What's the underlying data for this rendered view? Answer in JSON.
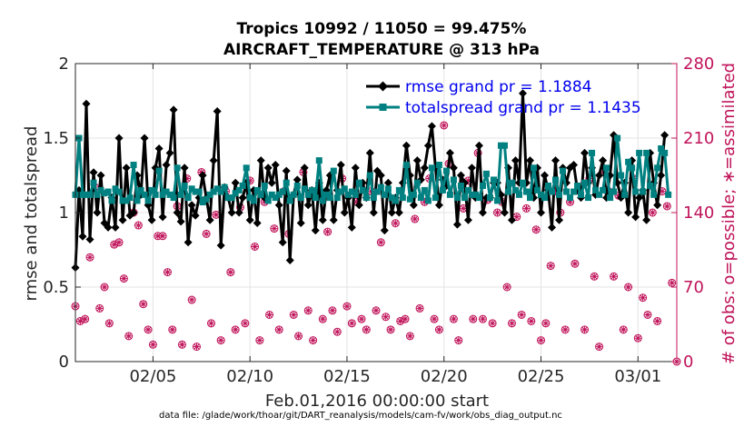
{
  "chart_data": {
    "type": "line",
    "title": "Tropics 10992 / 11050 = 99.475%",
    "subtitle": "AIRCRAFT_TEMPERATURE @ 313 hPa",
    "xlabel": "Feb.01,2016 00:00:00 start",
    "ylabel": "rmse and totalspread",
    "ylabel_right": "# of obs: o=possible; ∗=assimilated",
    "footnote": "data file: /glade/work/thoar/git/DART_reanalysis/models/cam-fv/work/obs_diag_output.nc",
    "xlim": [
      1,
      32
    ],
    "ylim": [
      0,
      2
    ],
    "ylim_right": [
      0,
      280
    ],
    "x_ticks": [
      5,
      10,
      15,
      20,
      25,
      30
    ],
    "x_tick_labels": [
      "02/05",
      "02/10",
      "02/15",
      "02/20",
      "02/25",
      "03/01"
    ],
    "y_ticks": [
      0,
      0.5,
      1,
      1.5,
      2
    ],
    "y_tick_labels": [
      "0",
      "0.5",
      "1",
      "1.5",
      "2"
    ],
    "y_ticks_right": [
      0,
      70,
      140,
      210,
      280
    ],
    "y_tick_labels_right": [
      "0",
      "70",
      "140",
      "210",
      "280"
    ],
    "colors": {
      "rmse": "#000000",
      "totalspread": "#008080",
      "obs": "#c0145a",
      "legend_text": "#0000ee"
    },
    "series": [
      {
        "name": "rmse grand pr = 1.1884",
        "values": [
          0.63,
          1.15,
          0.84,
          1.73,
          0.82,
          1.27,
          1.0,
          1.25,
          0.93,
          0.9,
          1.1,
          0.9,
          1.5,
          0.95,
          1.3,
          0.98,
          1.0,
          1.25,
          1.12,
          1.5,
          1.05,
          0.95,
          1.3,
          1.43,
          0.97,
          1.32,
          1.4,
          1.69,
          1.0,
          0.94,
          1.3,
          0.8,
          1.05,
          0.98,
          1.1,
          1.25,
          1.1,
          0.95,
          1.35,
          1.68,
          0.78,
          1.17,
          1.1,
          1.0,
          1.2,
          1.0,
          1.1,
          1.2,
          0.95,
          1.15,
          0.93,
          1.35,
          1.1,
          1.3,
          1.2,
          1.32,
          1.05,
          0.8,
          1.28,
          0.68,
          1.12,
          1.22,
          0.93,
          1.3,
          1.05,
          1.15,
          0.88,
          1.2,
          0.95,
          1.15,
          1.25,
          0.95,
          1.15,
          1.32,
          1.0,
          1.1,
          0.9,
          1.3,
          1.05,
          1.2,
          1.1,
          1.4,
          1.0,
          1.28,
          1.25,
          0.88,
          1.2,
          1.0,
          1.1,
          1.0,
          1.2,
          1.45,
          1.25,
          1.05,
          1.35,
          1.22,
          1.3,
          1.45,
          1.58,
          1.3,
          1.05,
          1.22,
          1.18,
          1.4,
          1.3,
          0.92,
          1.25,
          1.2,
          0.95,
          1.3,
          1.1,
          1.45,
          1.0,
          1.1,
          1.1,
          1.2,
          1.2,
          1.12,
          1.0,
          1.3,
          0.95,
          1.35,
          1.2,
          1.8,
          1.2,
          1.35,
          1.1,
          1.3,
          1.0,
          1.25,
          1.15,
          0.9,
          1.35,
          0.95,
          1.3,
          1.2,
          1.3,
          1.32,
          1.15,
          1.1,
          1.4,
          1.2,
          1.3,
          1.12,
          1.25,
          1.35,
          1.1,
          1.25,
          1.52,
          1.2,
          1.1,
          1.2,
          1.0,
          1.35,
          0.97,
          1.1,
          1.15,
          0.95,
          1.4,
          1.2,
          1.05,
          1.25,
          1.52
        ],
        "x_start": 1.0,
        "x_step": 0.1875
      },
      {
        "name": "totalspread grand pr = 1.1435",
        "values": [
          1.12,
          1.5,
          1.12,
          1.12,
          1.12,
          1.2,
          1.12,
          1.15,
          1.13,
          1.14,
          1.08,
          1.16,
          1.14,
          1.08,
          1.08,
          1.1,
          1.32,
          1.08,
          1.15,
          1.12,
          1.08,
          1.15,
          1.12,
          1.28,
          1.12,
          1.14,
          1.12,
          1.1,
          1.3,
          1.12,
          1.18,
          1.1,
          1.16,
          1.14,
          1.14,
          1.07,
          1.09,
          1.12,
          1.14,
          1.16,
          1.14,
          1.17,
          1.1,
          1.1,
          1.13,
          1.15,
          1.18,
          1.3,
          1.1,
          1.08,
          1.15,
          1.12,
          1.18,
          1.08,
          1.12,
          1.1,
          1.12,
          1.14,
          1.2,
          1.08,
          1.12,
          1.18,
          1.1,
          1.16,
          1.12,
          1.15,
          1.1,
          1.35,
          1.08,
          1.12,
          1.1,
          1.28,
          1.1,
          1.14,
          1.16,
          1.12,
          1.14,
          1.12,
          1.2,
          1.15,
          1.1,
          1.25,
          1.1,
          1.14,
          1.17,
          1.12,
          1.16,
          1.1,
          1.08,
          1.15,
          1.1,
          1.32,
          1.09,
          1.12,
          1.2,
          1.1,
          1.15,
          1.08,
          1.3,
          1.1,
          1.32,
          1.15,
          1.28,
          1.12,
          1.22,
          1.1,
          1.18,
          1.1,
          1.15,
          1.12,
          1.12,
          1.1,
          1.18,
          1.26,
          1.1,
          1.22,
          1.08,
          1.45,
          1.45,
          1.14,
          1.2,
          1.15,
          1.12,
          1.2,
          1.14,
          1.1,
          1.3,
          1.15,
          1.12,
          1.1,
          1.18,
          1.14,
          1.22,
          1.12,
          1.28,
          1.14,
          1.1,
          1.14,
          1.18,
          1.12,
          1.2,
          1.1,
          1.4,
          1.15,
          1.12,
          1.15,
          1.3,
          1.1,
          1.14,
          1.5,
          1.25,
          1.12,
          1.34,
          1.3,
          1.14,
          1.4,
          1.14,
          1.4,
          1.18,
          1.12,
          1.3,
          1.43,
          1.4,
          1.12
        ],
        "x_start": 1.0,
        "x_step": 0.1875
      }
    ],
    "obs_points": [
      {
        "x": 1.0,
        "y": 52
      },
      {
        "x": 1.25,
        "y": 38
      },
      {
        "x": 1.5,
        "y": 40
      },
      {
        "x": 1.75,
        "y": 98
      },
      {
        "x": 2.0,
        "y": 164
      },
      {
        "x": 2.25,
        "y": 50
      },
      {
        "x": 2.5,
        "y": 70
      },
      {
        "x": 2.75,
        "y": 36
      },
      {
        "x": 3.0,
        "y": 110
      },
      {
        "x": 3.25,
        "y": 112
      },
      {
        "x": 3.5,
        "y": 78
      },
      {
        "x": 3.75,
        "y": 24
      },
      {
        "x": 4.0,
        "y": 140
      },
      {
        "x": 4.25,
        "y": 128
      },
      {
        "x": 4.5,
        "y": 54
      },
      {
        "x": 4.75,
        "y": 30
      },
      {
        "x": 5.0,
        "y": 16
      },
      {
        "x": 5.25,
        "y": 118
      },
      {
        "x": 5.5,
        "y": 118
      },
      {
        "x": 5.75,
        "y": 84
      },
      {
        "x": 6.0,
        "y": 30
      },
      {
        "x": 6.25,
        "y": 146
      },
      {
        "x": 6.5,
        "y": 16
      },
      {
        "x": 6.75,
        "y": 172
      },
      {
        "x": 7.0,
        "y": 58
      },
      {
        "x": 7.25,
        "y": 14
      },
      {
        "x": 7.5,
        "y": 178
      },
      {
        "x": 7.75,
        "y": 120
      },
      {
        "x": 8.0,
        "y": 36
      },
      {
        "x": 8.25,
        "y": 138
      },
      {
        "x": 8.5,
        "y": 20
      },
      {
        "x": 8.75,
        "y": 160
      },
      {
        "x": 9.0,
        "y": 84
      },
      {
        "x": 9.25,
        "y": 30
      },
      {
        "x": 9.5,
        "y": 145
      },
      {
        "x": 9.75,
        "y": 36
      },
      {
        "x": 10.0,
        "y": 170
      },
      {
        "x": 10.25,
        "y": 108
      },
      {
        "x": 10.5,
        "y": 20
      },
      {
        "x": 10.75,
        "y": 150
      },
      {
        "x": 11.0,
        "y": 44
      },
      {
        "x": 11.25,
        "y": 125
      },
      {
        "x": 11.5,
        "y": 30
      },
      {
        "x": 11.75,
        "y": 160
      },
      {
        "x": 12.0,
        "y": 120
      },
      {
        "x": 12.25,
        "y": 44
      },
      {
        "x": 12.5,
        "y": 24
      },
      {
        "x": 12.75,
        "y": 178
      },
      {
        "x": 13.0,
        "y": 48
      },
      {
        "x": 13.25,
        "y": 20
      },
      {
        "x": 13.5,
        "y": 160
      },
      {
        "x": 13.75,
        "y": 40
      },
      {
        "x": 14.0,
        "y": 122
      },
      {
        "x": 14.25,
        "y": 48
      },
      {
        "x": 14.5,
        "y": 28
      },
      {
        "x": 14.75,
        "y": 172
      },
      {
        "x": 15.0,
        "y": 52
      },
      {
        "x": 15.25,
        "y": 36
      },
      {
        "x": 15.5,
        "y": 150
      },
      {
        "x": 15.75,
        "y": 40
      },
      {
        "x": 16.0,
        "y": 30
      },
      {
        "x": 16.25,
        "y": 160
      },
      {
        "x": 16.5,
        "y": 48
      },
      {
        "x": 16.75,
        "y": 112
      },
      {
        "x": 17.0,
        "y": 42
      },
      {
        "x": 17.25,
        "y": 30
      },
      {
        "x": 17.5,
        "y": 130
      },
      {
        "x": 17.75,
        "y": 38
      },
      {
        "x": 18.0,
        "y": 40
      },
      {
        "x": 18.25,
        "y": 24
      },
      {
        "x": 18.5,
        "y": 134
      },
      {
        "x": 18.75,
        "y": 50
      },
      {
        "x": 19.0,
        "y": 150
      },
      {
        "x": 19.25,
        "y": 172
      },
      {
        "x": 19.5,
        "y": 40
      },
      {
        "x": 19.75,
        "y": 30
      },
      {
        "x": 20.0,
        "y": 222
      },
      {
        "x": 20.25,
        "y": 186
      },
      {
        "x": 20.5,
        "y": 40
      },
      {
        "x": 20.75,
        "y": 20
      },
      {
        "x": 21.0,
        "y": 144
      },
      {
        "x": 21.25,
        "y": 170
      },
      {
        "x": 21.5,
        "y": 40
      },
      {
        "x": 21.75,
        "y": 196
      },
      {
        "x": 22.0,
        "y": 40
      },
      {
        "x": 22.25,
        "y": 152
      },
      {
        "x": 22.5,
        "y": 36
      },
      {
        "x": 22.75,
        "y": 140
      },
      {
        "x": 23.0,
        "y": 150
      },
      {
        "x": 23.25,
        "y": 70
      },
      {
        "x": 23.5,
        "y": 36
      },
      {
        "x": 23.75,
        "y": 136
      },
      {
        "x": 24.0,
        "y": 44
      },
      {
        "x": 24.25,
        "y": 144
      },
      {
        "x": 24.5,
        "y": 38
      },
      {
        "x": 24.75,
        "y": 124
      },
      {
        "x": 25.0,
        "y": 20
      },
      {
        "x": 25.25,
        "y": 36
      },
      {
        "x": 25.5,
        "y": 90
      },
      {
        "x": 25.75,
        "y": 160
      },
      {
        "x": 26.0,
        "y": 140
      },
      {
        "x": 26.25,
        "y": 30
      },
      {
        "x": 26.5,
        "y": 150
      },
      {
        "x": 26.75,
        "y": 92
      },
      {
        "x": 27.0,
        "y": 160
      },
      {
        "x": 27.25,
        "y": 30
      },
      {
        "x": 27.5,
        "y": 172
      },
      {
        "x": 27.75,
        "y": 80
      },
      {
        "x": 28.0,
        "y": 14
      },
      {
        "x": 28.25,
        "y": 180
      },
      {
        "x": 28.5,
        "y": 160
      },
      {
        "x": 28.75,
        "y": 80
      },
      {
        "x": 29.0,
        "y": 156
      },
      {
        "x": 29.25,
        "y": 30
      },
      {
        "x": 29.5,
        "y": 70
      },
      {
        "x": 29.75,
        "y": 172
      },
      {
        "x": 30.0,
        "y": 22
      },
      {
        "x": 30.25,
        "y": 60
      },
      {
        "x": 30.5,
        "y": 44
      },
      {
        "x": 30.75,
        "y": 140
      },
      {
        "x": 31.0,
        "y": 38
      },
      {
        "x": 31.25,
        "y": 160
      },
      {
        "x": 31.5,
        "y": 146
      },
      {
        "x": 31.75,
        "y": 74
      },
      {
        "x": 32.0,
        "y": 0
      }
    ]
  }
}
